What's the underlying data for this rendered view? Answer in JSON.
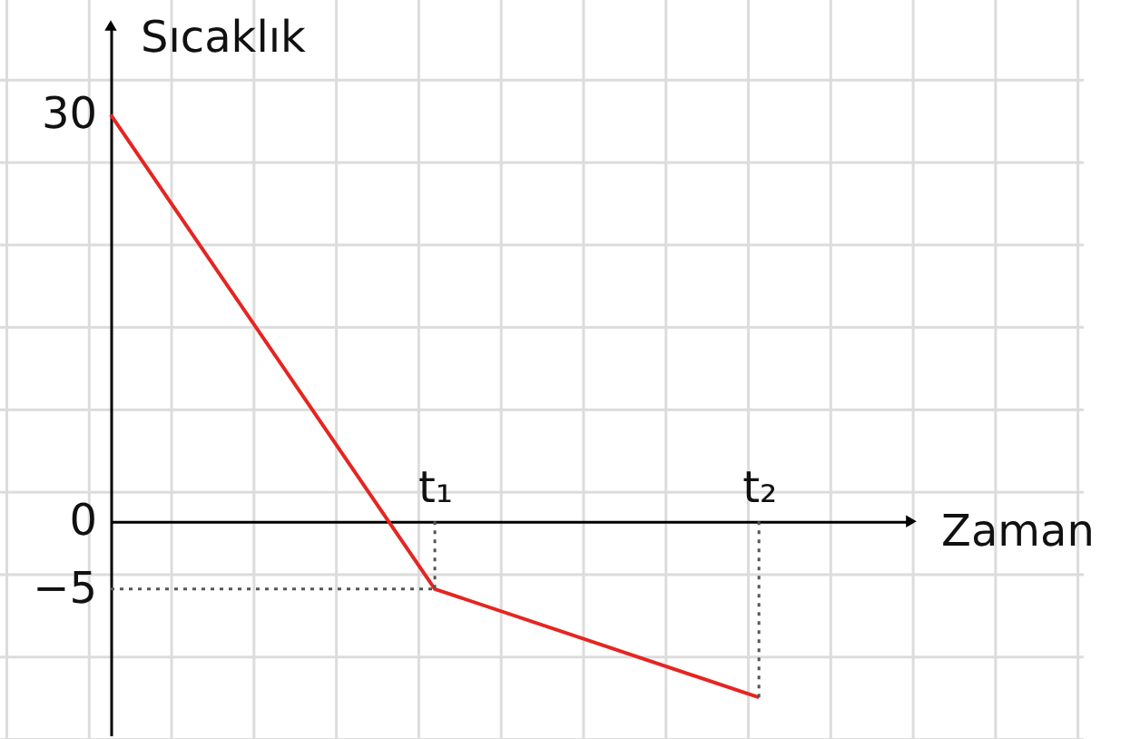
{
  "chart_data": {
    "type": "line",
    "xlabel": "Zaman",
    "ylabel": "Sıcaklık",
    "categories": [
      null,
      "t₁",
      "t₂"
    ],
    "ylim": [
      -15.8,
      36.6
    ],
    "yticks": [
      30,
      0,
      -5
    ],
    "series": [
      {
        "color": "#e52521",
        "values": [
          30,
          -5,
          -13
        ]
      },
      {
        "color": "#555555",
        "line_style": "dotted",
        "values": [
          -5,
          -5,
          null
        ]
      },
      {
        "color": "#555555",
        "line_style": "dotted",
        "x": [
          "t₁",
          "t₁"
        ],
        "values": [
          0,
          -5
        ]
      },
      {
        "color": "#555555",
        "line_style": "dotted",
        "x": [
          "t₂",
          "t₂"
        ],
        "values": [
          0,
          -13
        ]
      }
    ]
  }
}
